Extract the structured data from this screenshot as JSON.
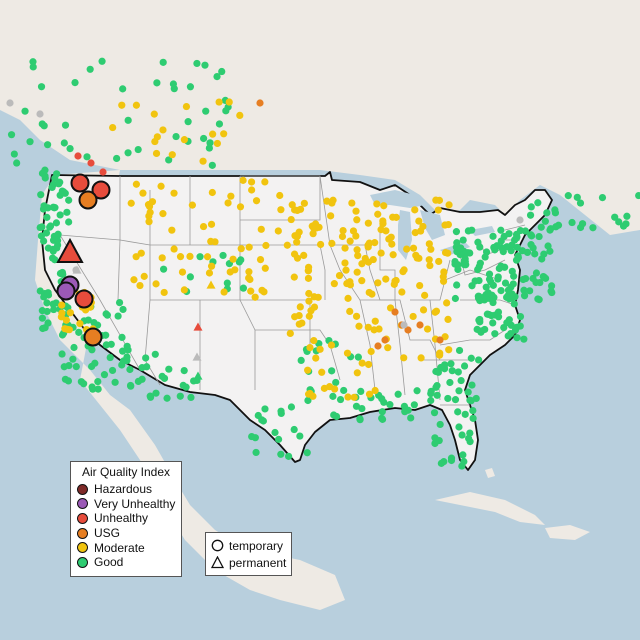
{
  "legend": {
    "title": "Air Quality Index",
    "items": [
      {
        "label": "Hazardous",
        "color": "#7e2a28"
      },
      {
        "label": "Very Unhealthy",
        "color": "#9b59b6"
      },
      {
        "label": "Unhealthy",
        "color": "#e74c3c"
      },
      {
        "label": "USG",
        "color": "#e67e22"
      },
      {
        "label": "Moderate",
        "color": "#f1c40f"
      },
      {
        "label": "Good",
        "color": "#2ecc71"
      }
    ]
  },
  "monitor_legend": {
    "items": [
      {
        "label": "temporary",
        "shape": "circle-icon"
      },
      {
        "label": "permanent",
        "shape": "triangle-icon"
      }
    ]
  },
  "colors": {
    "water": "#b8cfdd",
    "land": "#eeeae4",
    "us_land": "#f3f2f2",
    "border": "#111111",
    "state_line": "#9a9a9a",
    "unknown": "#bbbbbb"
  }
}
